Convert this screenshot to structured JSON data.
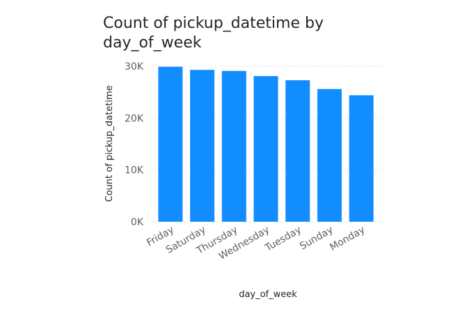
{
  "chart_data": {
    "type": "bar",
    "title_lines": [
      "Count of pickup_datetime by",
      "day_of_week"
    ],
    "xlabel": "day_of_week",
    "ylabel": "Count of pickup_datetime",
    "categories": [
      "Friday",
      "Saturday",
      "Thursday",
      "Wednesday",
      "Tuesday",
      "Sunday",
      "Monday"
    ],
    "values": [
      29900,
      29300,
      29100,
      28100,
      27300,
      25600,
      24400
    ],
    "ylim": [
      0,
      30000
    ],
    "yticks": [
      0,
      10000,
      20000,
      30000
    ],
    "ytick_labels": [
      "0K",
      "10K",
      "20K",
      "30K"
    ],
    "grid": true,
    "bar_color": "#118dff"
  }
}
